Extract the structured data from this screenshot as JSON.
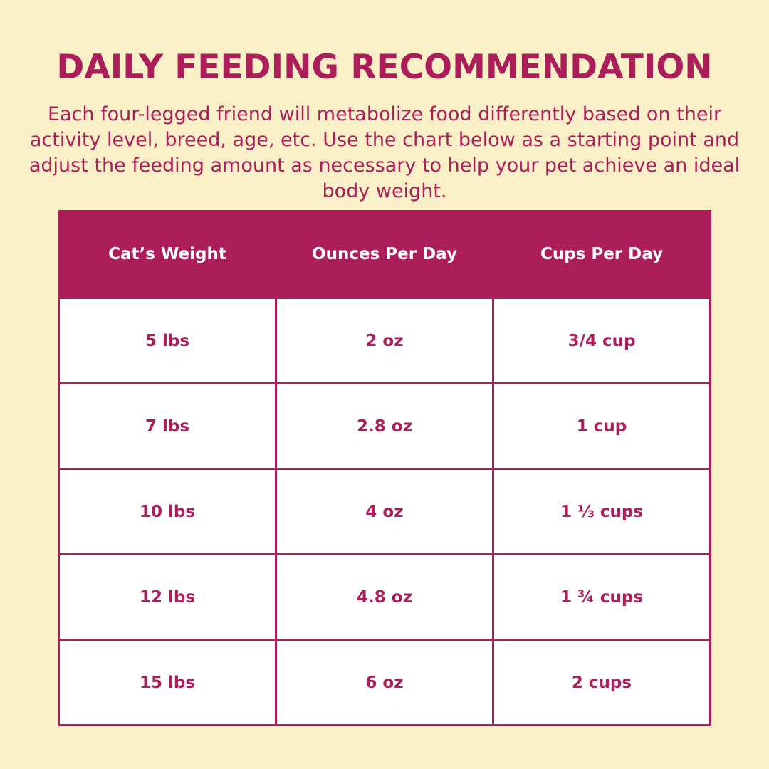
{
  "title": "DAILY FEEDING RECOMMENDATION",
  "intro": "Each four-legged friend will metabolize food differently based on their activity level, breed, age, etc. Use the chart below as a starting point and adjust the feeding amount as necessary to help your pet achieve an ideal body weight.",
  "table": {
    "headers": [
      "Cat’s Weight",
      "Ounces Per Day",
      "Cups Per Day"
    ],
    "rows": [
      [
        "5 lbs",
        "2 oz",
        "3/4 cup"
      ],
      [
        "7 lbs",
        "2.8 oz",
        "1 cup"
      ],
      [
        "10 lbs",
        "4 oz",
        "1 ⅓ cups"
      ],
      [
        "12 lbs",
        "4.8 oz",
        "1 ¾ cups"
      ],
      [
        "15 lbs",
        "6 oz",
        "2 cups"
      ]
    ]
  },
  "colors": {
    "background": "#faf0c8",
    "accent": "#ab1e5a",
    "cell": "#ffffff"
  }
}
